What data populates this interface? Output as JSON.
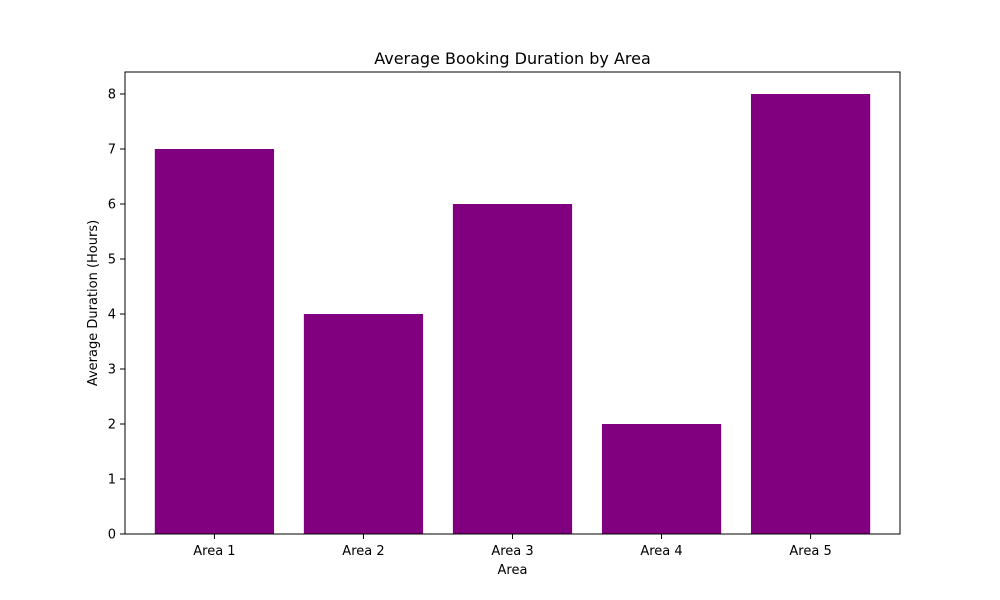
{
  "chart_data": {
    "type": "bar",
    "title": "Average Booking Duration by Area",
    "xlabel": "Area",
    "ylabel": "Average Duration (Hours)",
    "categories": [
      "Area 1",
      "Area 2",
      "Area 3",
      "Area 4",
      "Area 5"
    ],
    "values": [
      7,
      4,
      6,
      2,
      8
    ],
    "ylim": [
      0,
      8.4
    ],
    "yticks": [
      0,
      1,
      2,
      3,
      4,
      5,
      6,
      7,
      8
    ],
    "grid": false,
    "legend": "none",
    "bar_color": "#800080"
  }
}
